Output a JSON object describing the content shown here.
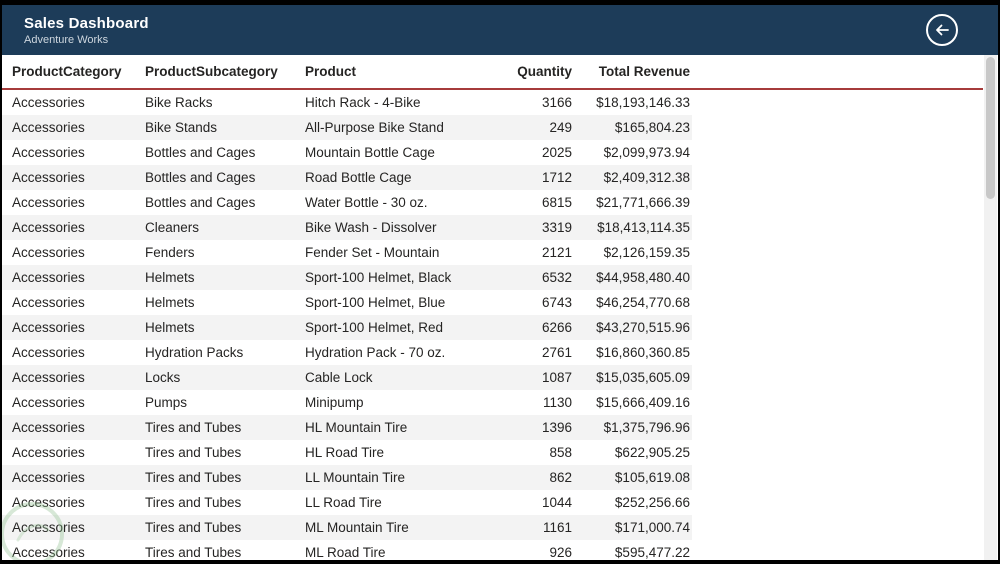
{
  "theme": {
    "header_bg": "#1d3c59",
    "header_text": "#ffffff",
    "accent_underline": "#a63b3b",
    "row_alt_bg": "#f3f3f3",
    "text_color": "#252423",
    "scrollbar_track": "#f1f1f1",
    "scrollbar_thumb": "#c8c8c8"
  },
  "header": {
    "title": "Sales Dashboard",
    "subtitle": "Adventure Works",
    "back_icon": "arrow-left-icon"
  },
  "table": {
    "columns": [
      {
        "key": "product-category",
        "label": "ProductCategory"
      },
      {
        "key": "product-subcategory",
        "label": "ProductSubcategory"
      },
      {
        "key": "product",
        "label": "Product"
      },
      {
        "key": "quantity",
        "label": "Quantity"
      },
      {
        "key": "total-revenue",
        "label": "Total Revenue"
      }
    ],
    "rows": [
      [
        "Accessories",
        "Bike Racks",
        "Hitch Rack - 4-Bike",
        "3166",
        "$18,193,146.33"
      ],
      [
        "Accessories",
        "Bike Stands",
        "All-Purpose Bike Stand",
        "249",
        "$165,804.23"
      ],
      [
        "Accessories",
        "Bottles and Cages",
        "Mountain Bottle Cage",
        "2025",
        "$2,099,973.94"
      ],
      [
        "Accessories",
        "Bottles and Cages",
        "Road Bottle Cage",
        "1712",
        "$2,409,312.38"
      ],
      [
        "Accessories",
        "Bottles and Cages",
        "Water Bottle - 30 oz.",
        "6815",
        "$21,771,666.39"
      ],
      [
        "Accessories",
        "Cleaners",
        "Bike Wash - Dissolver",
        "3319",
        "$18,413,114.35"
      ],
      [
        "Accessories",
        "Fenders",
        "Fender Set - Mountain",
        "2121",
        "$2,126,159.35"
      ],
      [
        "Accessories",
        "Helmets",
        "Sport-100 Helmet, Black",
        "6532",
        "$44,958,480.40"
      ],
      [
        "Accessories",
        "Helmets",
        "Sport-100 Helmet, Blue",
        "6743",
        "$46,254,770.68"
      ],
      [
        "Accessories",
        "Helmets",
        "Sport-100 Helmet, Red",
        "6266",
        "$43,270,515.96"
      ],
      [
        "Accessories",
        "Hydration Packs",
        "Hydration Pack - 70 oz.",
        "2761",
        "$16,860,360.85"
      ],
      [
        "Accessories",
        "Locks",
        "Cable Lock",
        "1087",
        "$15,035,605.09"
      ],
      [
        "Accessories",
        "Pumps",
        "Minipump",
        "1130",
        "$15,666,409.16"
      ],
      [
        "Accessories",
        "Tires and Tubes",
        "HL Mountain Tire",
        "1396",
        "$1,375,796.96"
      ],
      [
        "Accessories",
        "Tires and Tubes",
        "HL Road Tire",
        "858",
        "$622,905.25"
      ],
      [
        "Accessories",
        "Tires and Tubes",
        "LL Mountain Tire",
        "862",
        "$105,619.08"
      ],
      [
        "Accessories",
        "Tires and Tubes",
        "LL Road Tire",
        "1044",
        "$252,256.66"
      ],
      [
        "Accessories",
        "Tires and Tubes",
        "ML Mountain Tire",
        "1161",
        "$171,000.74"
      ],
      [
        "Accessories",
        "Tires and Tubes",
        "ML Road Tire",
        "926",
        "$595,477.22"
      ]
    ]
  }
}
